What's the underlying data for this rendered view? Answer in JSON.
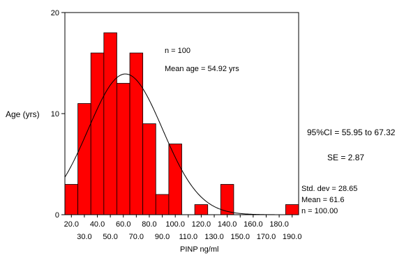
{
  "chart_data": {
    "type": "bar",
    "title": "",
    "xlabel": "PINP ng/ml",
    "ylabel": "Age (yrs)",
    "ylim": [
      0,
      20
    ],
    "y_ticks": [
      "0",
      "10",
      "20"
    ],
    "bin_width": 10,
    "categories": [
      "20.0",
      "30.0",
      "40.0",
      "50.0",
      "60.0",
      "70.0",
      "80.0",
      "90.0",
      "100.0",
      "110.0",
      "120.0",
      "130.0",
      "140.0",
      "150.0",
      "160.0",
      "170.0",
      "180.0",
      "190.0"
    ],
    "values": [
      3,
      11,
      16,
      18,
      13,
      16,
      9,
      2,
      7,
      0,
      1,
      0,
      3,
      0,
      0,
      0,
      0,
      1
    ],
    "bar_color": "#ff0000",
    "normal_curve": {
      "mean": 61.6,
      "std": 28.65,
      "n": 100
    },
    "grid": false
  },
  "annotations": {
    "n_label": "n = 100",
    "mean_age": "Mean age = 54.92 yrs",
    "ci": "95%CI = 55.95 to 67.32",
    "se": "SE = 2.87"
  },
  "stats": {
    "std_dev": "Std. dev = 28.65",
    "mean": "Mean = 61.6",
    "n": "n = 100.00"
  }
}
